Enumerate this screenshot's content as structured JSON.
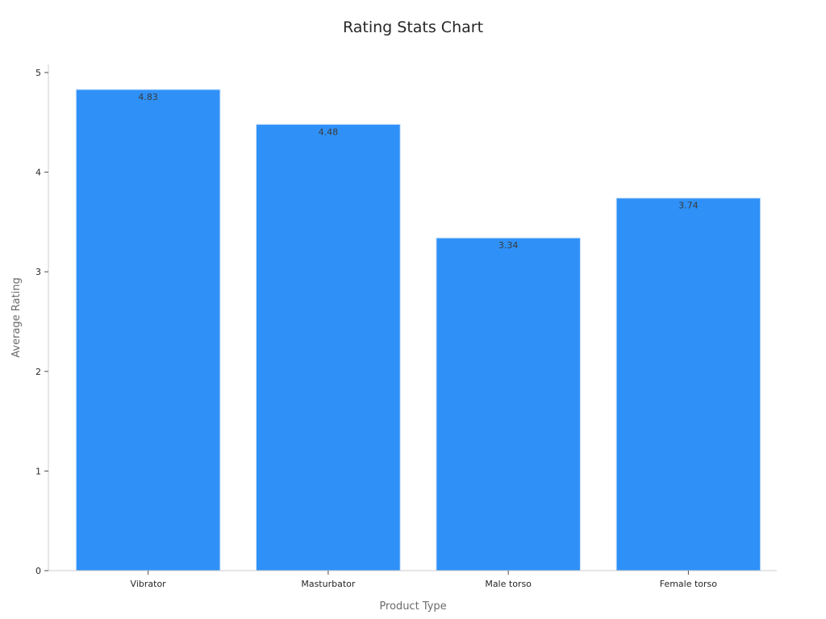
{
  "chart_data": {
    "type": "bar",
    "title": "Rating Stats Chart",
    "xlabel": "Product Type",
    "ylabel": "Average Rating",
    "categories": [
      "Vibrator",
      "Masturbator",
      "Male torso",
      "Female torso"
    ],
    "values": [
      4.83,
      4.48,
      3.34,
      3.74
    ],
    "value_labels": [
      "4.83",
      "4.48",
      "3.34",
      "3.74"
    ],
    "ylim": [
      0,
      5
    ],
    "yticks": [
      0,
      1,
      2,
      3,
      4,
      5
    ],
    "grid": false,
    "legend": "none",
    "bar_color": "#2f91f8"
  }
}
